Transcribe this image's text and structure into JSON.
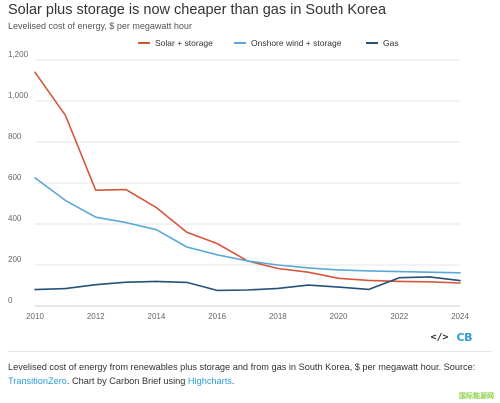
{
  "header": {
    "title": "Solar plus storage is now cheaper than gas in South Korea",
    "subtitle": "Levelised cost of energy, $ per megawatt hour"
  },
  "colors": {
    "solar": "#d6563b",
    "wind": "#59a9d4",
    "gas": "#26527a",
    "grid": "#e6e6e6",
    "link": "#2f9bd6"
  },
  "chart_data": {
    "type": "line",
    "x": [
      2010,
      2011,
      2012,
      2013,
      2014,
      2015,
      2016,
      2017,
      2018,
      2019,
      2020,
      2021,
      2022,
      2023,
      2024
    ],
    "series": [
      {
        "name": "Solar + storage",
        "color": "#d6563b",
        "values": [
          1140,
          930,
          565,
          568,
          480,
          360,
          305,
          220,
          183,
          165,
          135,
          125,
          120,
          118,
          112
        ]
      },
      {
        "name": "Onshore wind + storage",
        "color": "#59a9d4",
        "values": [
          625,
          515,
          433,
          407,
          372,
          288,
          250,
          220,
          200,
          186,
          176,
          171,
          168,
          165,
          162
        ]
      },
      {
        "name": "Gas",
        "color": "#26527a",
        "values": [
          80,
          85,
          104,
          116,
          120,
          115,
          76,
          78,
          86,
          102,
          92,
          81,
          138,
          142,
          124
        ]
      }
    ],
    "xlim": [
      2010,
      2024
    ],
    "ylim": [
      0,
      1200
    ],
    "yticks": [
      0,
      200,
      400,
      600,
      800,
      1000,
      1200
    ],
    "ytick_labels": [
      "0",
      "200",
      "400",
      "600",
      "800",
      "1,000",
      "1,200"
    ],
    "xticks": [
      2010,
      2012,
      2014,
      2016,
      2018,
      2020,
      2022,
      2024
    ],
    "xtick_labels": [
      "2010",
      "2012",
      "2014",
      "2016",
      "2018",
      "2020",
      "2022",
      "2024"
    ],
    "grid": true,
    "legend": "top-center"
  },
  "legend": {
    "items": [
      "Solar + storage",
      "Onshore wind + storage",
      "Gas"
    ]
  },
  "footer": {
    "code_icon": "</>",
    "logo": "CB",
    "caption_text": "Levelised cost of energy from renewables plus storage and from gas in South Korea, $ per megawatt hour. Source: ",
    "caption_link_1": "TransitionZero",
    "caption_mid": ". Chart by Carbon Brief using ",
    "caption_link_2": "Highcharts",
    "caption_end": "."
  },
  "watermark": "国际能源网"
}
